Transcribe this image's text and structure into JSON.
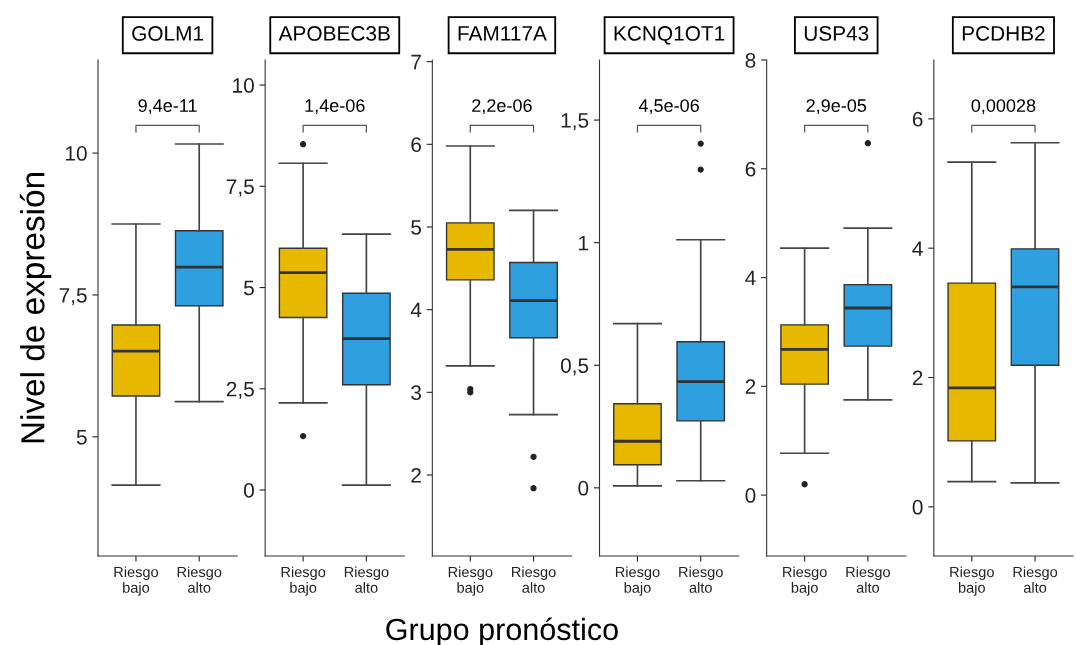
{
  "chart_data": [
    {
      "type": "box",
      "title": "GOLM1",
      "ylabel": "Nivel de expresión",
      "categories": [
        "Riesgo\nbajo",
        "Riesgo\nalto"
      ],
      "colors": [
        "#e6b800",
        "#2e9fdf"
      ],
      "annotations": [
        "9,4e-11"
      ],
      "ylim": [
        2.9,
        11.64
      ],
      "yticks": [
        5,
        {
          "value": 7.5,
          "label": "7,5"
        },
        10
      ],
      "grid": false,
      "boxes": [
        {
          "low": 4.15,
          "q1": 5.72,
          "median": 6.51,
          "q3": 6.97,
          "high": 8.75
        },
        {
          "low": 5.62,
          "q1": 7.31,
          "median": 7.99,
          "q3": 8.63,
          "high": 10.16
        }
      ]
    },
    {
      "type": "box",
      "title": "APOBEC3B",
      "categories": [
        "Riesgo\nbajo",
        "Riesgo\nalto"
      ],
      "colors": [
        "#e6b800",
        "#2e9fdf"
      ],
      "annotations": [
        "1,4e-06"
      ],
      "ylim": [
        -1.63,
        10.62
      ],
      "yticks": [
        0,
        {
          "value": 2.5,
          "label": "2,5"
        },
        5,
        {
          "value": 7.5,
          "label": "7,5"
        },
        10
      ],
      "grid": false,
      "boxes": [
        {
          "low": 2.15,
          "q1": 4.26,
          "median": 5.37,
          "q3": 5.97,
          "high": 8.07,
          "outliers": [
            8.54,
            1.33
          ]
        },
        {
          "low": 0.12,
          "q1": 2.6,
          "median": 3.74,
          "q3": 4.86,
          "high": 6.32
        }
      ]
    },
    {
      "type": "box",
      "title": "FAM117A",
      "xlabel": "Grupo pronóstico",
      "categories": [
        "Riesgo\nbajo",
        "Riesgo\nalto"
      ],
      "colors": [
        "#e6b800",
        "#2e9fdf"
      ],
      "annotations": [
        "2,2e-06"
      ],
      "ylim": [
        1.02,
        7.02
      ],
      "yticks": [
        2,
        3,
        4,
        5,
        6,
        7
      ],
      "grid": false,
      "boxes": [
        {
          "low": 3.32,
          "q1": 4.36,
          "median": 4.73,
          "q3": 5.05,
          "high": 5.98,
          "outliers": [
            3.04,
            3.0
          ]
        },
        {
          "low": 2.73,
          "q1": 3.66,
          "median": 4.11,
          "q3": 4.57,
          "high": 5.2,
          "outliers": [
            2.22,
            1.84
          ]
        }
      ]
    },
    {
      "type": "box",
      "title": "KCNQ1OT1",
      "categories": [
        "Riesgo\nbajo",
        "Riesgo\nalto"
      ],
      "colors": [
        "#e6b800",
        "#2e9fdf"
      ],
      "annotations": [
        "4,5e-06"
      ],
      "ylim": [
        -0.278,
        1.745
      ],
      "yticks": [
        0,
        {
          "value": 0.5,
          "label": "0,5"
        },
        1,
        {
          "value": 1.5,
          "label": "1,5"
        }
      ],
      "grid": false,
      "boxes": [
        {
          "low": 0.008,
          "q1": 0.094,
          "median": 0.19,
          "q3": 0.343,
          "high": 0.67
        },
        {
          "low": 0.029,
          "q1": 0.273,
          "median": 0.433,
          "q3": 0.596,
          "high": 1.012,
          "outliers": [
            1.404,
            1.298
          ]
        }
      ]
    },
    {
      "type": "box",
      "title": "USP43",
      "categories": [
        "Riesgo\nbajo",
        "Riesgo\nalto"
      ],
      "colors": [
        "#e6b800",
        "#2e9fdf"
      ],
      "annotations": [
        "2,9e-05"
      ],
      "ylim": [
        -1.12,
        8
      ],
      "yticks": [
        0,
        2,
        4,
        6,
        8
      ],
      "grid": false,
      "boxes": [
        {
          "low": 0.77,
          "q1": 2.04,
          "median": 2.68,
          "q3": 3.13,
          "high": 4.54,
          "outliers": [
            0.2
          ]
        },
        {
          "low": 1.75,
          "q1": 2.74,
          "median": 3.44,
          "q3": 3.87,
          "high": 4.91,
          "outliers": [
            6.47
          ]
        }
      ]
    },
    {
      "type": "box",
      "title": "PCDHB2",
      "categories": [
        "Riesgo\nbajo",
        "Riesgo\nalto"
      ],
      "colors": [
        "#e6b800",
        "#2e9fdf"
      ],
      "annotations": [
        "0,00028"
      ],
      "ylim": [
        -0.76,
        6.91
      ],
      "yticks": [
        0,
        2,
        4,
        6
      ],
      "grid": false,
      "boxes": [
        {
          "low": 0.39,
          "q1": 1.02,
          "median": 1.84,
          "q3": 3.46,
          "high": 5.33
        },
        {
          "low": 0.37,
          "q1": 2.19,
          "median": 3.4,
          "q3": 3.99,
          "high": 5.63
        }
      ]
    }
  ]
}
